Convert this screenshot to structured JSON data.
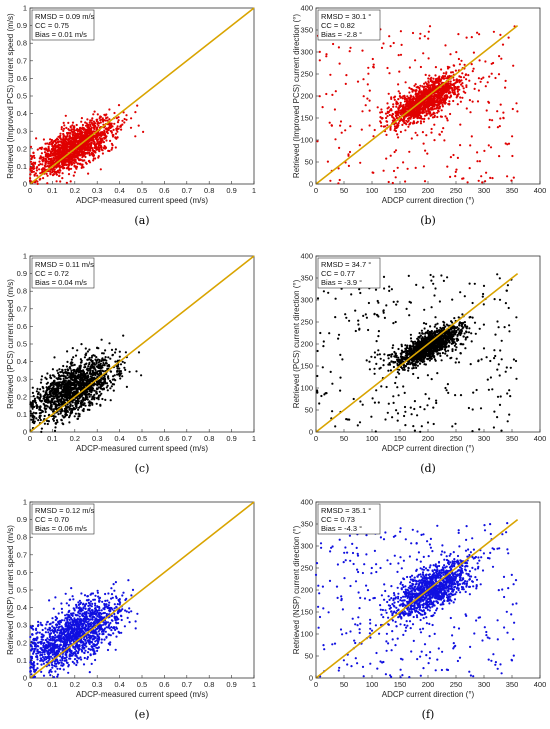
{
  "chart_data": [
    {
      "type": "scatter",
      "panel_label": "(a)",
      "xlabel": "ADCP-measured current speed (m/s)",
      "ylabel": "Retrieved (Improved PCS) current speed (m/s)",
      "xlim": [
        0,
        1
      ],
      "ylim": [
        0,
        1
      ],
      "xticks": [
        "0",
        "0.1",
        "0.2",
        "0.3",
        "0.4",
        "0.5",
        "0.6",
        "0.7",
        "0.8",
        "0.9",
        "1"
      ],
      "yticks": [
        "0",
        "0.1",
        "0.2",
        "0.3",
        "0.4",
        "0.5",
        "0.6",
        "0.7",
        "0.8",
        "0.9",
        "1"
      ],
      "stats": [
        "RMSD = 0.09 m/s",
        "CC = 0.75",
        "Bias = 0.01 m/s"
      ],
      "point_color": "#e00000",
      "line_color": "#d9a400",
      "reference_line": [
        [
          0,
          0
        ],
        [
          1,
          1
        ]
      ],
      "cluster": {
        "center": [
          0.2,
          0.21
        ],
        "spread": [
          0.09,
          0.08
        ],
        "n": 1600,
        "min": [
          0,
          0
        ]
      }
    },
    {
      "type": "scatter",
      "panel_label": "(b)",
      "xlabel": "ADCP current direction (°)",
      "ylabel": "Retrieved (Improved PCS) current direction (°)",
      "xlim": [
        0,
        400
      ],
      "ylim": [
        0,
        400
      ],
      "xticks": [
        "0",
        "50",
        "100",
        "150",
        "200",
        "250",
        "300",
        "350",
        "400"
      ],
      "yticks": [
        "0",
        "50",
        "100",
        "150",
        "200",
        "250",
        "300",
        "350",
        "400"
      ],
      "stats": [
        "RMSD = 30.1 °",
        "CC = 0.82",
        "Bias = -2.8 °"
      ],
      "point_color": "#e00000",
      "line_color": "#d9a400",
      "reference_line": [
        [
          0,
          0
        ],
        [
          360,
          360
        ]
      ],
      "cluster": {
        "center": [
          195,
          190
        ],
        "spread": [
          32,
          28
        ],
        "n": 1300,
        "min": [
          0,
          0
        ],
        "max": [
          360,
          360
        ]
      },
      "scatter_uniform": {
        "n": 260,
        "max": [
          360,
          360
        ]
      }
    },
    {
      "type": "scatter",
      "panel_label": "(c)",
      "xlabel": "ADCP-measured current speed (m/s)",
      "ylabel": "Retrieved (PCS) current speed (m/s)",
      "xlim": [
        0,
        1
      ],
      "ylim": [
        0,
        1
      ],
      "xticks": [
        "0",
        "0.1",
        "0.2",
        "0.3",
        "0.4",
        "0.5",
        "0.6",
        "0.7",
        "0.8",
        "0.9",
        "1"
      ],
      "yticks": [
        "0",
        "0.1",
        "0.2",
        "0.3",
        "0.4",
        "0.5",
        "0.6",
        "0.7",
        "0.8",
        "0.9",
        "1"
      ],
      "stats": [
        "RMSD = 0.11 m/s",
        "CC = 0.72",
        "Bias = 0.04 m/s"
      ],
      "point_color": "#000000",
      "line_color": "#d9a400",
      "reference_line": [
        [
          0,
          0
        ],
        [
          1,
          1
        ]
      ],
      "cluster": {
        "center": [
          0.2,
          0.25
        ],
        "spread": [
          0.09,
          0.1
        ],
        "n": 1500,
        "min": [
          0,
          0
        ]
      }
    },
    {
      "type": "scatter",
      "panel_label": "(d)",
      "xlabel": "ADCP current direction (°)",
      "ylabel": "Retrieved (PCS) current direction (°)",
      "xlim": [
        0,
        400
      ],
      "ylim": [
        0,
        400
      ],
      "xticks": [
        "0",
        "50",
        "100",
        "150",
        "200",
        "250",
        "300",
        "350",
        "400"
      ],
      "yticks": [
        "0",
        "50",
        "100",
        "150",
        "200",
        "250",
        "300",
        "350",
        "400"
      ],
      "stats": [
        "RMSD = 34.7 °",
        "CC = 0.77",
        "Bias = -3.9 °"
      ],
      "point_color": "#000000",
      "line_color": "#d9a400",
      "reference_line": [
        [
          0,
          0
        ],
        [
          360,
          360
        ]
      ],
      "cluster": {
        "center": [
          200,
          195
        ],
        "spread": [
          30,
          22
        ],
        "n": 1300,
        "min": [
          0,
          0
        ],
        "max": [
          360,
          360
        ]
      },
      "scatter_uniform": {
        "n": 300,
        "max": [
          360,
          360
        ]
      }
    },
    {
      "type": "scatter",
      "panel_label": "(e)",
      "xlabel": "ADCP-measured current speed (m/s)",
      "ylabel": "Retrieved (NSP) current speed (m/s)",
      "xlim": [
        0,
        1
      ],
      "ylim": [
        0,
        1
      ],
      "xticks": [
        "0",
        "0.1",
        "0.2",
        "0.3",
        "0.4",
        "0.5",
        "0.6",
        "0.7",
        "0.8",
        "0.9",
        "1"
      ],
      "yticks": [
        "0",
        "0.1",
        "0.2",
        "0.3",
        "0.4",
        "0.5",
        "0.6",
        "0.7",
        "0.8",
        "0.9",
        "1"
      ],
      "stats": [
        "RMSD = 0.12 m/s",
        "CC = 0.70",
        "Bias = 0.06 m/s"
      ],
      "point_color": "#1010e0",
      "line_color": "#d9a400",
      "reference_line": [
        [
          0,
          0
        ],
        [
          1,
          1
        ]
      ],
      "cluster": {
        "center": [
          0.2,
          0.25
        ],
        "spread": [
          0.1,
          0.11
        ],
        "n": 1500,
        "min": [
          0,
          0
        ]
      }
    },
    {
      "type": "scatter",
      "panel_label": "(f)",
      "xlabel": "ADCP current direction (°)",
      "ylabel": "Retrieved (NSP) current direction (°)",
      "xlim": [
        0,
        400
      ],
      "ylim": [
        0,
        400
      ],
      "xticks": [
        "0",
        "50",
        "100",
        "150",
        "200",
        "250",
        "300",
        "350",
        "400"
      ],
      "yticks": [
        "0",
        "50",
        "100",
        "150",
        "200",
        "250",
        "300",
        "350",
        "400"
      ],
      "stats": [
        "RMSD = 35.1 °",
        "CC = 0.73",
        "Bias = -4.3 °"
      ],
      "point_color": "#1010e0",
      "line_color": "#d9a400",
      "reference_line": [
        [
          0,
          0
        ],
        [
          360,
          360
        ]
      ],
      "cluster": {
        "center": [
          205,
          200
        ],
        "spread": [
          35,
          35
        ],
        "n": 1200,
        "min": [
          0,
          0
        ],
        "max": [
          360,
          360
        ]
      },
      "scatter_uniform": {
        "n": 320,
        "max": [
          360,
          360
        ]
      }
    }
  ]
}
